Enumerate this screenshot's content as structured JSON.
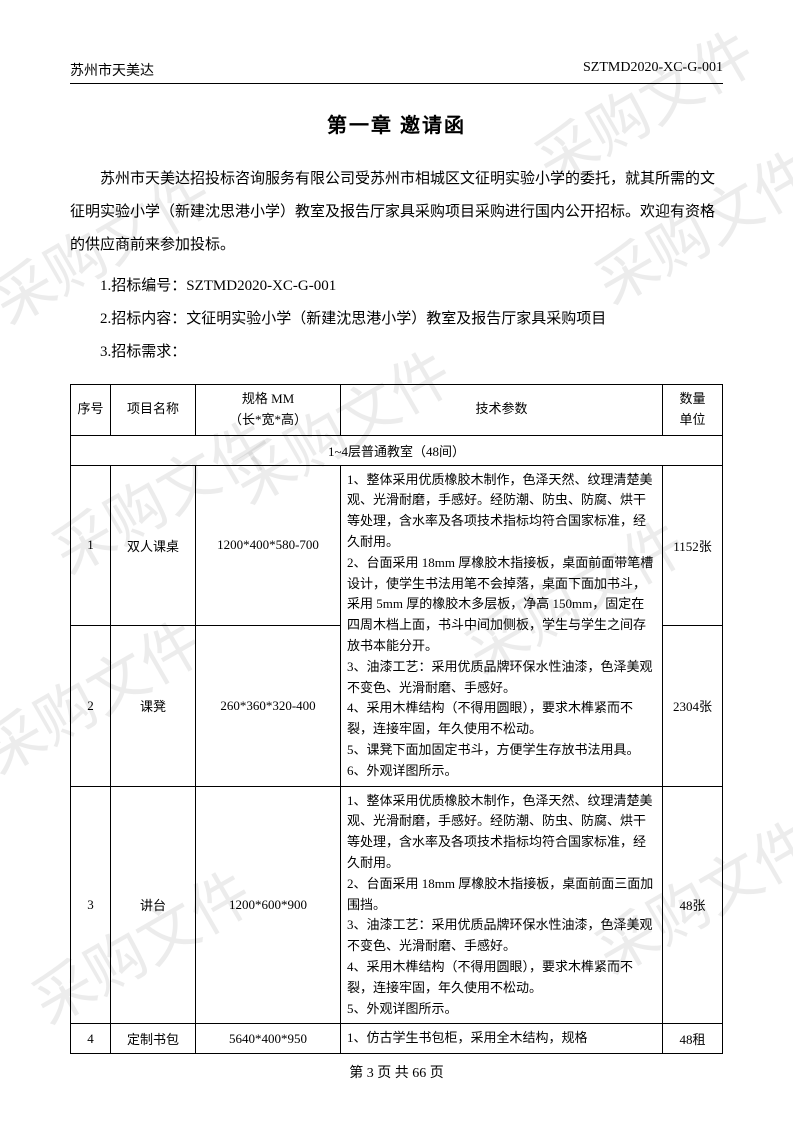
{
  "header": {
    "left": "苏州市天美达",
    "right": "SZTMD2020-XC-G-001"
  },
  "chapter_title": "第一章  邀请函",
  "intro": "苏州市天美达招投标咨询服务有限公司受苏州市相城区文征明实验小学的委托，就其所需的文征明实验小学（新建沈思港小学）教室及报告厅家具采购项目采购进行国内公开招标。欢迎有资格的供应商前来参加投标。",
  "items": [
    "1.招标编号：SZTMD2020-XC-G-001",
    "2.招标内容：文征明实验小学（新建沈思港小学）教室及报告厅家具采购项目",
    "3.招标需求："
  ],
  "table": {
    "headers": {
      "seq": "序号",
      "name": "项目名称",
      "spec": "规格 MM\n（长*宽*高）",
      "tech": "技术参数",
      "qty": "数量\n单位"
    },
    "section": "1~4层普通教室（48间）",
    "rows": [
      {
        "seq": "1",
        "name": "双人课桌",
        "spec": "1200*400*580-700",
        "tech": "1、整体采用优质橡胶木制作，色泽天然、纹理清楚美观、光滑耐磨，手感好。经防潮、防虫、防腐、烘干等处理，含水率及各项技术指标均符合国家标准，经久耐用。",
        "qty": "1152张"
      },
      {
        "seq": "2",
        "name": "课凳",
        "spec": "260*360*320-400",
        "tech": "2、台面采用 18mm 厚橡胶木指接板，桌面前面带笔槽设计，使学生书法用笔不会掉落，桌面下面加书斗，采用 5mm 厚的橡胶木多层板，净高 150mm，固定在四周木档上面，书斗中间加侧板，学生与学生之间存放书本能分开。\n3、油漆工艺：采用优质品牌环保水性油漆，色泽美观不变色、光滑耐磨、手感好。\n4、采用木榫结构（不得用圆眼），要求木榫紧而不裂，连接牢固，年久使用不松动。\n5、课凳下面加固定书斗，方便学生存放书法用具。\n6、外观详图所示。",
        "qty": "2304张"
      },
      {
        "seq": "3",
        "name": "讲台",
        "spec": "1200*600*900",
        "tech": "1、整体采用优质橡胶木制作，色泽天然、纹理清楚美观、光滑耐磨，手感好。经防潮、防虫、防腐、烘干等处理，含水率及各项技术指标均符合国家标准，经久耐用。\n2、台面采用 18mm 厚橡胶木指接板，桌面前面三面加围挡。\n3、油漆工艺：采用优质品牌环保水性油漆，色泽美观不变色、光滑耐磨、手感好。\n4、采用木榫结构（不得用圆眼），要求木榫紧而不裂，连接牢固，年久使用不松动。\n5、外观详图所示。",
        "qty": "48张"
      },
      {
        "seq": "4",
        "name": "定制书包",
        "spec": "5640*400*950",
        "tech": "1、仿古学生书包柜，采用全木结构，规格",
        "qty": "48租"
      }
    ]
  },
  "footer": "第 3 页 共 66 页",
  "watermark_text": "采购文件"
}
